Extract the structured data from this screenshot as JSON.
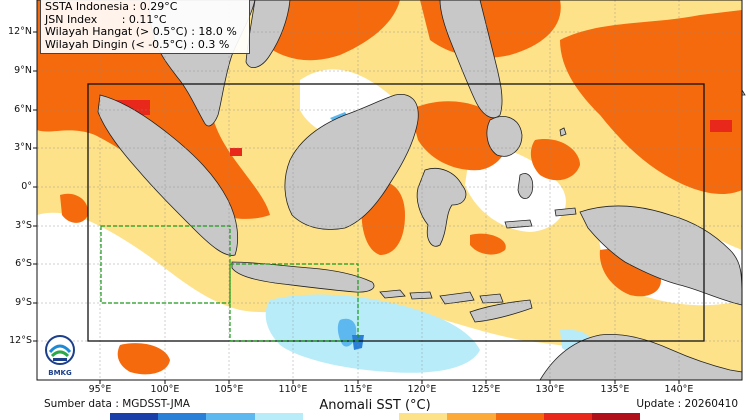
{
  "info": {
    "ssta": "SSTA Indonesia : 0.29°C",
    "jsn": "JSN Index       : 0.11°C",
    "hangat": "Wilayah Hangat (> 0.5°C) : 18.0 %",
    "dingin": "Wilayah Dingin (< -0.5°C) : 0.3 %"
  },
  "axes": {
    "lat_labels": [
      "12°N",
      "9°N",
      "6°N",
      "3°N",
      "0°",
      "3°S",
      "6°S",
      "9°S",
      "12°S"
    ],
    "lon_labels": [
      "95°E",
      "100°E",
      "105°E",
      "110°E",
      "115°E",
      "120°E",
      "125°E",
      "130°E",
      "135°E",
      "140°E"
    ]
  },
  "footer": {
    "source": "Sumber data : MGDSST-JMA",
    "update": "Update : 20260410",
    "title": "Anomali SST (°C)"
  },
  "logo": {
    "text": "BMKG"
  },
  "colors": {
    "warm_light": "#fde28a",
    "warm_mid": "#fcaa3a",
    "warm_strong": "#f56a0d",
    "hot": "#e8281b",
    "cool_light": "#b8ecf8",
    "cool_mid": "#5db8ef",
    "cool_strong": "#2a7fd6",
    "land": "#c8c8c8",
    "neutral": "#ffffff"
  },
  "colorbar": [
    "#1a3fa8",
    "#2a7fd6",
    "#5db8ef",
    "#b8ecf8",
    "#ffffff",
    "#ffffff",
    "#fde28a",
    "#fcaa3a",
    "#f56a0d",
    "#e8281b",
    "#b0101a"
  ]
}
